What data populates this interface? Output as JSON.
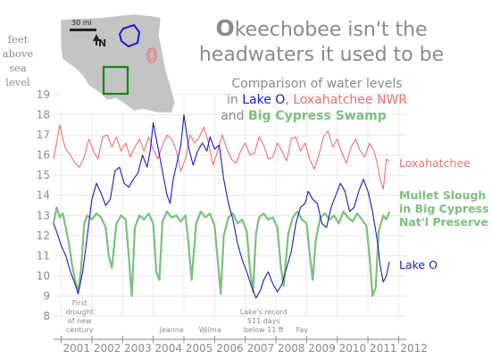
{
  "chart_data": {
    "type": "line",
    "title_first_letter": "O",
    "title_rest_line1": "keechobee isn't the",
    "title_line2": "headwaters it used to be",
    "subtitle": {
      "line1": "Comparison of water levels",
      "line2_prefix": "in ",
      "lake_o": "Lake O",
      "comma": ", ",
      "loxahatchee": "Loxahatchee NWR",
      "line3_prefix": "and ",
      "big_cypress": "Big Cypress Swamp"
    },
    "ylabel_lines": [
      "feet",
      "above",
      "sea",
      "level"
    ],
    "ylim": [
      8,
      19
    ],
    "yticks": [
      8,
      9,
      10,
      11,
      12,
      13,
      14,
      15,
      16,
      17,
      18,
      19
    ],
    "xlim": [
      2000.75,
      2012.25
    ],
    "xtick_labels": [
      "2001",
      "2002",
      "2003",
      "2004",
      "2005",
      "2006",
      "2007",
      "2008",
      "2009",
      "2010",
      "2011",
      "2012"
    ],
    "grid": true,
    "colors": {
      "lake_o": "#1a1acc",
      "loxahatchee": "#f07070",
      "big_cypress": "#7cc07c",
      "text": "#8a8a8a"
    },
    "map": {
      "scale_label": "30 mi",
      "north_label": "N"
    },
    "annotations": [
      {
        "x": 2001.6,
        "lines": [
          "First",
          "drought",
          "of new",
          "century"
        ]
      },
      {
        "x": 2004.6,
        "lines": [
          "Jeanne"
        ]
      },
      {
        "x": 2005.85,
        "lines": [
          "Wilma"
        ]
      },
      {
        "x": 2007.6,
        "lines": [
          "Lake's record",
          "511 days",
          "below 11 ft"
        ]
      },
      {
        "x": 2008.85,
        "lines": [
          "Fay"
        ]
      }
    ],
    "series": [
      {
        "name": "Loxahatchee",
        "label_lines": [
          "Loxahatchee"
        ],
        "color": "#f07070",
        "x": [
          2000.75,
          2000.85,
          2000.95,
          2001.05,
          2001.15,
          2001.3,
          2001.45,
          2001.6,
          2001.75,
          2001.9,
          2002.05,
          2002.2,
          2002.35,
          2002.5,
          2002.65,
          2002.8,
          2002.95,
          2003.1,
          2003.25,
          2003.4,
          2003.55,
          2003.7,
          2003.85,
          2004.0,
          2004.15,
          2004.3,
          2004.45,
          2004.6,
          2004.75,
          2004.9,
          2005.05,
          2005.2,
          2005.35,
          2005.5,
          2005.65,
          2005.8,
          2005.95,
          2006.1,
          2006.25,
          2006.4,
          2006.55,
          2006.7,
          2006.85,
          2007.0,
          2007.15,
          2007.3,
          2007.45,
          2007.6,
          2007.75,
          2007.9,
          2008.05,
          2008.2,
          2008.35,
          2008.5,
          2008.65,
          2008.8,
          2008.95,
          2009.1,
          2009.25,
          2009.4,
          2009.55,
          2009.7,
          2009.85,
          2010.0,
          2010.15,
          2010.3,
          2010.45,
          2010.6,
          2010.75,
          2010.9,
          2011.05,
          2011.2,
          2011.3,
          2011.4,
          2011.5,
          2011.6,
          2011.7
        ],
        "values": [
          15.8,
          16.6,
          17.5,
          16.8,
          16.3,
          16.0,
          15.6,
          15.4,
          15.9,
          16.8,
          16.2,
          15.8,
          16.9,
          17.0,
          16.4,
          16.9,
          16.2,
          16.6,
          15.9,
          16.4,
          16.8,
          16.2,
          16.9,
          16.3,
          15.8,
          16.5,
          17.0,
          16.8,
          16.2,
          15.2,
          15.8,
          17.0,
          16.6,
          16.9,
          17.4,
          16.6,
          15.5,
          16.2,
          17.0,
          16.3,
          15.8,
          15.6,
          16.2,
          16.6,
          16.0,
          16.1,
          16.9,
          16.5,
          15.8,
          15.9,
          16.6,
          16.2,
          15.7,
          16.8,
          16.9,
          16.2,
          16.6,
          15.8,
          15.3,
          16.0,
          16.9,
          17.2,
          16.4,
          16.8,
          16.1,
          15.6,
          16.4,
          16.8,
          16.2,
          15.9,
          16.6,
          16.2,
          15.6,
          14.8,
          14.3,
          15.8,
          15.7
        ]
      },
      {
        "name": "Big Cypress",
        "label_lines": [
          "Mullet Slough",
          "in Big Cypress",
          "Nat'l Preserve"
        ],
        "color": "#7cc07c",
        "x": [
          2000.75,
          2000.85,
          2000.95,
          2001.05,
          2001.15,
          2001.25,
          2001.35,
          2001.45,
          2001.55,
          2001.65,
          2001.75,
          2001.85,
          2002.0,
          2002.15,
          2002.3,
          2002.45,
          2002.55,
          2002.65,
          2002.8,
          2002.95,
          2003.1,
          2003.2,
          2003.3,
          2003.4,
          2003.55,
          2003.7,
          2003.85,
          2004.0,
          2004.1,
          2004.2,
          2004.3,
          2004.45,
          2004.6,
          2004.75,
          2004.9,
          2005.05,
          2005.15,
          2005.25,
          2005.4,
          2005.55,
          2005.7,
          2005.85,
          2006.0,
          2006.1,
          2006.2,
          2006.3,
          2006.45,
          2006.6,
          2006.75,
          2006.9,
          2007.05,
          2007.15,
          2007.25,
          2007.35,
          2007.45,
          2007.6,
          2007.75,
          2007.9,
          2008.05,
          2008.15,
          2008.25,
          2008.4,
          2008.55,
          2008.7,
          2008.85,
          2009.0,
          2009.1,
          2009.2,
          2009.3,
          2009.45,
          2009.6,
          2009.75,
          2009.9,
          2010.05,
          2010.2,
          2010.35,
          2010.5,
          2010.65,
          2010.8,
          2010.95,
          2011.05,
          2011.15,
          2011.25,
          2011.35,
          2011.5,
          2011.6,
          2011.7
        ],
        "values": [
          12.6,
          13.4,
          12.9,
          13.1,
          12.4,
          11.6,
          10.6,
          9.8,
          9.2,
          10.4,
          12.6,
          13.0,
          12.8,
          13.1,
          12.9,
          12.4,
          11.0,
          10.4,
          12.6,
          13.0,
          12.8,
          11.0,
          9.0,
          12.4,
          13.0,
          12.8,
          13.1,
          12.6,
          10.2,
          9.8,
          12.7,
          13.2,
          12.9,
          13.0,
          12.7,
          13.0,
          11.6,
          9.8,
          12.6,
          13.2,
          12.9,
          13.1,
          12.5,
          10.8,
          9.1,
          12.0,
          12.9,
          13.1,
          12.6,
          12.8,
          12.2,
          10.4,
          9.2,
          12.1,
          12.9,
          13.1,
          12.8,
          12.9,
          12.4,
          10.6,
          9.5,
          12.1,
          12.9,
          13.2,
          12.8,
          12.6,
          11.1,
          9.8,
          11.8,
          12.9,
          13.1,
          12.8,
          13.0,
          12.6,
          13.2,
          12.9,
          12.7,
          13.1,
          12.8,
          12.5,
          11.0,
          9.0,
          9.4,
          12.2,
          13.0,
          12.8,
          13.2
        ]
      },
      {
        "name": "Lake O",
        "label_lines": [
          "Lake O"
        ],
        "color": "#1a1acc",
        "x": [
          2000.75,
          2000.85,
          2001.0,
          2001.15,
          2001.3,
          2001.45,
          2001.55,
          2001.7,
          2001.85,
          2002.0,
          2002.15,
          2002.3,
          2002.45,
          2002.6,
          2002.75,
          2002.9,
          2003.05,
          2003.2,
          2003.35,
          2003.5,
          2003.65,
          2003.8,
          2003.9,
          2004.0,
          2004.15,
          2004.3,
          2004.45,
          2004.55,
          2004.65,
          2004.8,
          2004.9,
          2005.0,
          2005.15,
          2005.3,
          2005.45,
          2005.6,
          2005.75,
          2005.85,
          2006.0,
          2006.15,
          2006.3,
          2006.45,
          2006.6,
          2006.75,
          2006.9,
          2007.05,
          2007.2,
          2007.35,
          2007.5,
          2007.6,
          2007.75,
          2007.9,
          2008.05,
          2008.2,
          2008.35,
          2008.5,
          2008.65,
          2008.8,
          2008.95,
          2009.05,
          2009.2,
          2009.35,
          2009.5,
          2009.65,
          2009.8,
          2009.95,
          2010.1,
          2010.25,
          2010.4,
          2010.55,
          2010.7,
          2010.85,
          2011.0,
          2011.15,
          2011.3,
          2011.4,
          2011.5,
          2011.6,
          2011.7
        ],
        "values": [
          12.6,
          12.2,
          11.5,
          11.0,
          10.2,
          9.6,
          9.1,
          10.2,
          12.0,
          13.8,
          14.6,
          14.1,
          13.5,
          13.8,
          15.2,
          15.4,
          14.6,
          14.4,
          14.8,
          15.1,
          16.0,
          15.4,
          16.2,
          17.6,
          16.4,
          15.2,
          14.0,
          13.6,
          14.8,
          15.8,
          16.5,
          18.0,
          16.4,
          15.5,
          16.2,
          16.6,
          16.2,
          16.9,
          16.3,
          16.5,
          14.8,
          13.6,
          12.8,
          11.6,
          10.8,
          10.2,
          9.5,
          8.9,
          9.3,
          9.8,
          10.2,
          9.6,
          9.2,
          9.6,
          10.4,
          11.2,
          12.6,
          13.4,
          13.6,
          14.2,
          13.8,
          13.6,
          12.6,
          12.4,
          13.4,
          14.0,
          14.6,
          14.2,
          13.2,
          13.4,
          14.2,
          14.8,
          14.2,
          13.2,
          11.8,
          10.5,
          9.7,
          10.0,
          10.7
        ]
      }
    ]
  }
}
